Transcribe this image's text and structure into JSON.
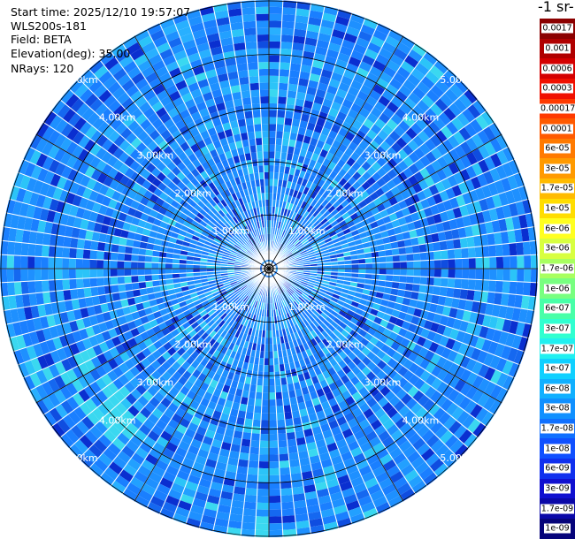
{
  "info": {
    "start_time": "Start time: 2025/12/10 19:57:07",
    "instrument": "WLS200s-181",
    "field": "Field: BETA",
    "elevation": "Elevation(deg): 35.00",
    "nrays": "NRays: 120"
  },
  "colorbar": {
    "unit_title_partial": "-1 sr-",
    "labels": [
      "0.0017",
      "0.001",
      "0.0006",
      "0.0003",
      "0.00017",
      "0.0001",
      "6e-05",
      "3e-05",
      "1.7e-05",
      "1e-05",
      "6e-06",
      "3e-06",
      "1.7e-06",
      "1e-06",
      "6e-07",
      "3e-07",
      "1.7e-07",
      "1e-07",
      "6e-08",
      "3e-08",
      "1.7e-08",
      "1e-08",
      "6e-09",
      "3e-09",
      "1.7e-09",
      "1e-09"
    ],
    "colors": [
      "#8b0000",
      "#b00000",
      "#d40000",
      "#f01000",
      "#ff3a00",
      "#ff5a00",
      "#ff7a00",
      "#ff9a00",
      "#ffbb00",
      "#ffdd00",
      "#ffff20",
      "#d8ff40",
      "#a8ff60",
      "#78ff80",
      "#48ffa8",
      "#30ffd0",
      "#20f0f0",
      "#10d0ff",
      "#10b0ff",
      "#1090ff",
      "#1070ff",
      "#1050ff",
      "#1030ee",
      "#1010d0",
      "#0a08a8",
      "#06047a"
    ]
  },
  "range_labels": [
    "1.00km",
    "2.00km",
    "3.00km",
    "4.00km",
    "5.00km"
  ],
  "chart_data": {
    "type": "heatmap",
    "title": "",
    "field": "BETA",
    "nrays": 120,
    "elevation_deg": 35.0,
    "range_rings_km": [
      1,
      2,
      3,
      4,
      5
    ],
    "scale": "log",
    "dominant_value_range": [
      1e-08,
      1e-07
    ]
  }
}
